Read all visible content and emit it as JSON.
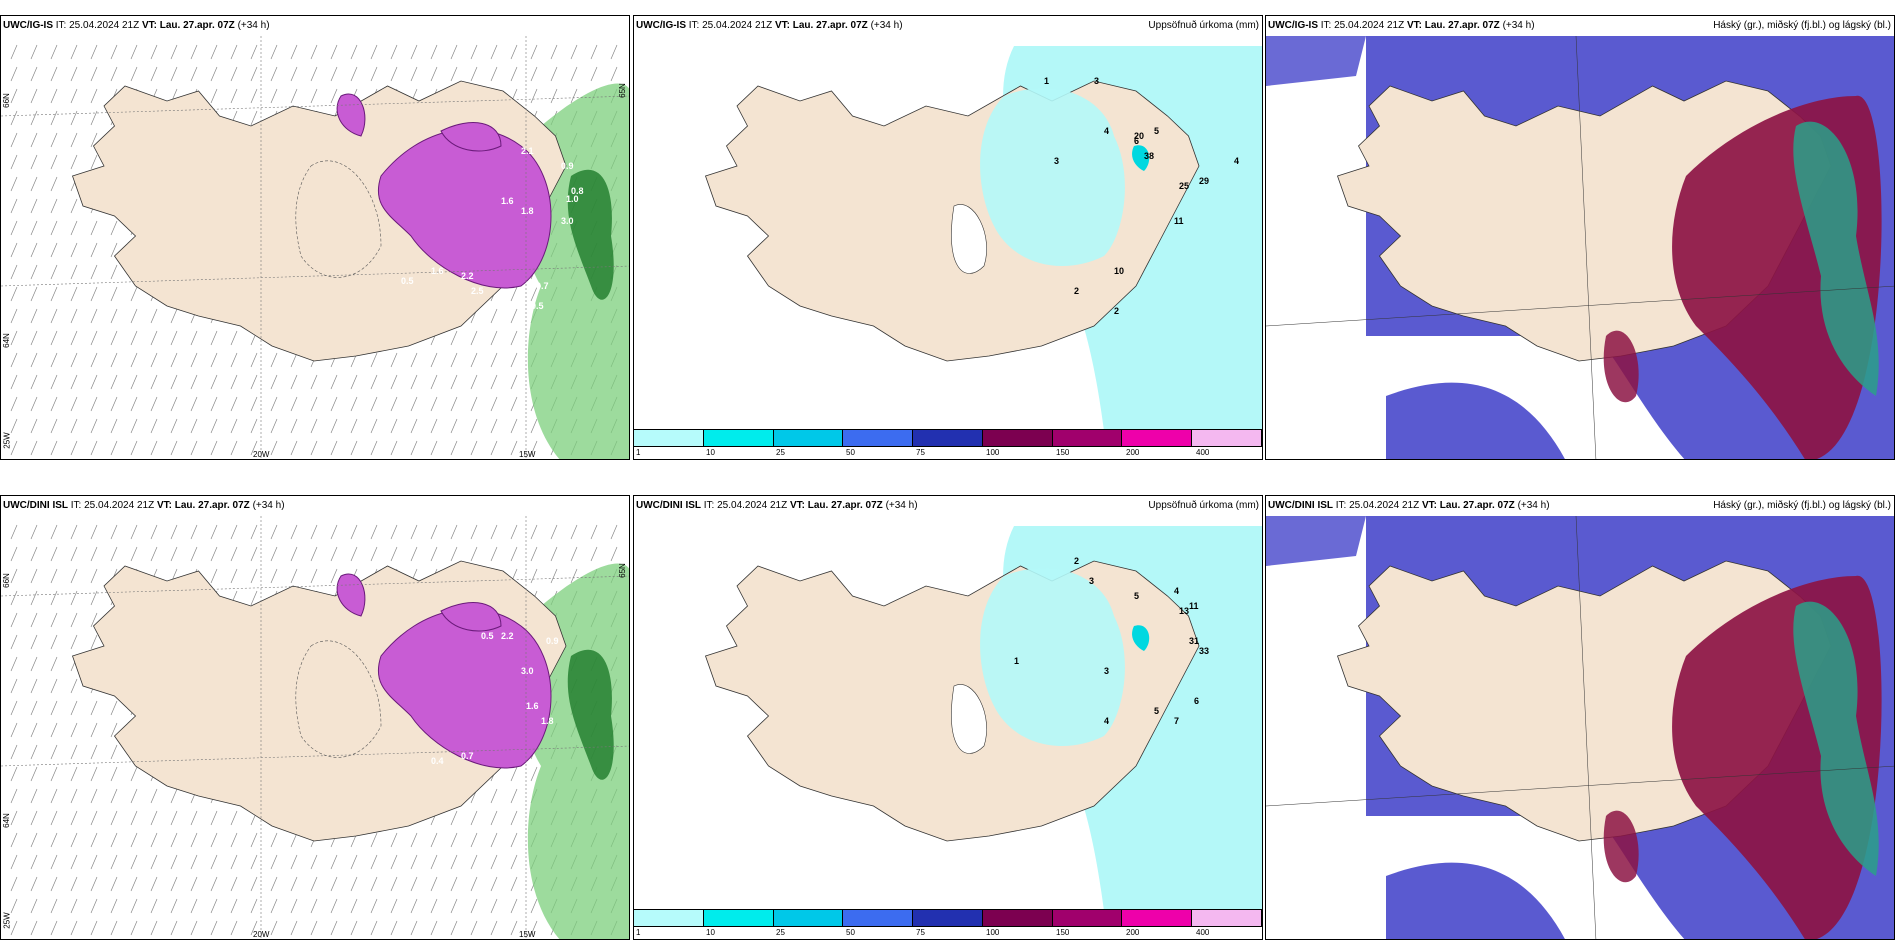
{
  "rows": [
    {
      "model": "UWC/IG-IS",
      "panels": [
        {
          "model": "UWC/IG-IS",
          "it_label": "IT:",
          "it": "25.04.2024 21Z",
          "vt_label": "VT:",
          "vt": "Lau. 27.apr. 07Z",
          "lead": "(+34 h)",
          "right": ""
        },
        {
          "model": "UWC/IG-IS",
          "it_label": "IT:",
          "it": "25.04.2024 21Z",
          "vt_label": "VT:",
          "vt": "Lau. 27.apr. 07Z",
          "lead": "(+34 h)",
          "right": "Uppsöfnuð úrkoma (mm)"
        },
        {
          "model": "UWC/IG-IS",
          "it_label": "IT:",
          "it": "25.04.2024 21Z",
          "vt_label": "VT:",
          "vt": "Lau. 27.apr. 07Z",
          "lead": "(+34 h)",
          "right": "Háský (gr.), miðský (fj.bl.) og lágský (bl.)"
        }
      ]
    },
    {
      "model": "UWC/DINI ISL",
      "panels": [
        {
          "model": "UWC/DINI ISL",
          "it_label": "IT:",
          "it": "25.04.2024 21Z",
          "vt_label": "VT:",
          "vt": "Lau. 27.apr. 07Z",
          "lead": "(+34 h)",
          "right": ""
        },
        {
          "model": "UWC/DINI ISL",
          "it_label": "IT:",
          "it": "25.04.2024 21Z",
          "vt_label": "VT:",
          "vt": "Lau. 27.apr. 07Z",
          "lead": "(+34 h)",
          "right": "Uppsöfnuð úrkoma (mm)"
        },
        {
          "model": "UWC/DINI ISL",
          "it_label": "IT:",
          "it": "25.04.2024 21Z",
          "vt_label": "VT:",
          "vt": "Lau. 27.apr. 07Z",
          "lead": "(+34 h)",
          "right": "Háský (gr.), miðský (fj.bl.) og lágský (bl.)"
        }
      ]
    }
  ],
  "axis_labels": {
    "lon1": "20W",
    "lon2": "15W",
    "lat66": "66N",
    "lat64": "64N",
    "lat65": "65N",
    "lat25": "25W"
  },
  "precip_scale": {
    "ticks": [
      "1",
      "10",
      "25",
      "50",
      "75",
      "100",
      "150",
      "200",
      "400"
    ],
    "colors": [
      "#b6fbfb",
      "#00ecec",
      "#00c8e8",
      "#3c6cf0",
      "#2230b0",
      "#7c0050",
      "#a0006c",
      "#ee00aa",
      "#f4b8f0"
    ]
  },
  "colors": {
    "land": "#f4e4d2",
    "sea_precip": "#b4f8f8",
    "green_precip": "#7ccf7c",
    "snow_purple": "#c85cd4",
    "cloud_high": "#5a5ad0",
    "cloud_mid": "#8c1444",
    "cloud_low": "#2aa088"
  },
  "map_values": {
    "igis_snow": [
      "0.9",
      "0.8",
      "1.0",
      "3.0",
      "2.1",
      "1.6",
      "1.8",
      "0.5",
      "2.2",
      "1.6",
      "0.5",
      "0.7",
      "2.5"
    ],
    "igis_precip": [
      "1",
      "3",
      "3",
      "4",
      "6",
      "5",
      "20",
      "38",
      "25",
      "29",
      "10",
      "11",
      "4",
      "2",
      "2",
      "1"
    ],
    "dini_snow": [
      "0.5",
      "2.2",
      "3.0",
      "1.6",
      "1.8",
      "0.4",
      "0.7",
      "0.9"
    ],
    "dini_precip": [
      "2",
      "3",
      "5",
      "4",
      "11",
      "13",
      "31",
      "33",
      "3",
      "4",
      "5",
      "6",
      "7",
      "1"
    ]
  }
}
